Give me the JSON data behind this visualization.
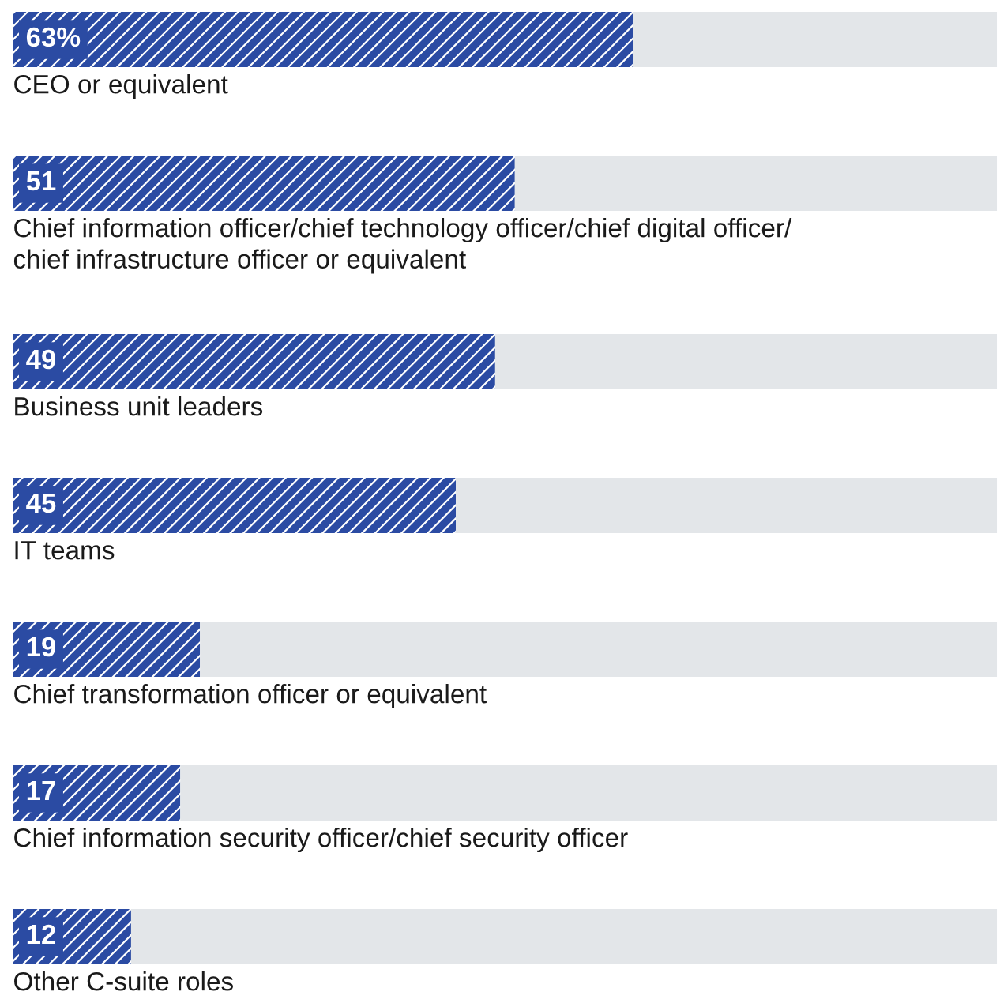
{
  "chart_data": {
    "type": "bar",
    "orientation": "horizontal",
    "stacked": true,
    "categories": [
      "CEO or equivalent",
      "Chief information officer/chief technology officer/chief digital officer/\nchief infrastructure officer or equivalent",
      "Business unit leaders",
      "IT teams",
      "Chief transformation officer or equivalent",
      "Chief information security officer/chief security officer",
      "Other C-suite roles"
    ],
    "series": [
      {
        "color": "#2b4ba3",
        "values": [
          63,
          51,
          49,
          45,
          19,
          17,
          12
        ],
        "value_labels": [
          "63%",
          "51",
          "49",
          "45",
          "19",
          "17",
          "12"
        ]
      },
      {
        "color": "#e3e6e9",
        "values": [
          37,
          49,
          51,
          55,
          81,
          83,
          88
        ]
      }
    ],
    "xlim": [
      0,
      100
    ]
  }
}
